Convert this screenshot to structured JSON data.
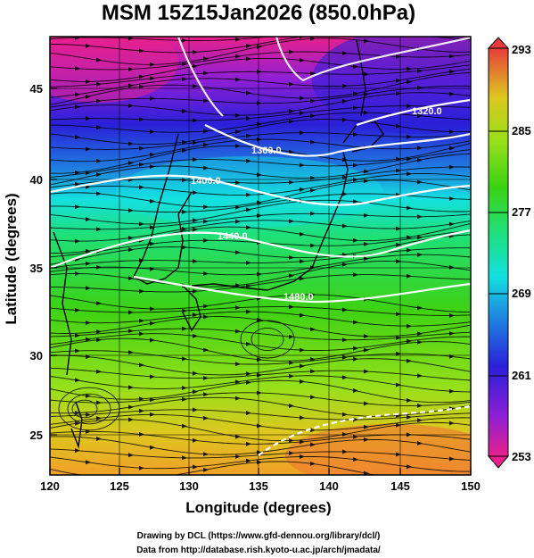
{
  "title": "MSM 15Z15Jan2026 (850.0hPa)",
  "x_axis": {
    "label": "Longitude (degrees)",
    "ticks": [
      "120",
      "125",
      "130",
      "135",
      "140",
      "145",
      "150"
    ],
    "range": [
      120,
      150
    ]
  },
  "y_axis": {
    "label": "Latitude  (degrees)",
    "ticks": [
      "25",
      "30",
      "35",
      "40",
      "45"
    ],
    "range": [
      22.5,
      47.8
    ]
  },
  "colorbar": {
    "ticks": [
      "293",
      "285",
      "277",
      "269",
      "261",
      "253"
    ],
    "range": [
      253,
      293
    ],
    "colors": [
      "#e8208c",
      "#8c1fd6",
      "#2a1fd8",
      "#1f7de0",
      "#14e0e0",
      "#1fe07a",
      "#3cd214",
      "#96e01a",
      "#dcc81f",
      "#f0a028",
      "#f07832",
      "#e83c3c"
    ]
  },
  "contours": {
    "color": "#ffffff",
    "labels": [
      "1320.0",
      "1360.0",
      "1400.0",
      "1440.0",
      "1480.0"
    ]
  },
  "credits": [
    "Drawing by DCL (https://www.gfd-dennou.org/library/dcl/)",
    "Data from http://database.rish.kyoto-u.ac.jp/arch/jmadata/"
  ],
  "chart_data": {
    "type": "heatmap",
    "title": "MSM 15Z15Jan2026 (850.0hPa)",
    "xlabel": "Longitude (degrees)",
    "ylabel": "Latitude  (degrees)",
    "xlim": [
      120,
      150
    ],
    "ylim": [
      22.5,
      47.8
    ],
    "colorbar_range": [
      253,
      293
    ],
    "contour_values": [
      1320,
      1360,
      1400,
      1440,
      1480
    ],
    "overlay": "streamlines"
  }
}
